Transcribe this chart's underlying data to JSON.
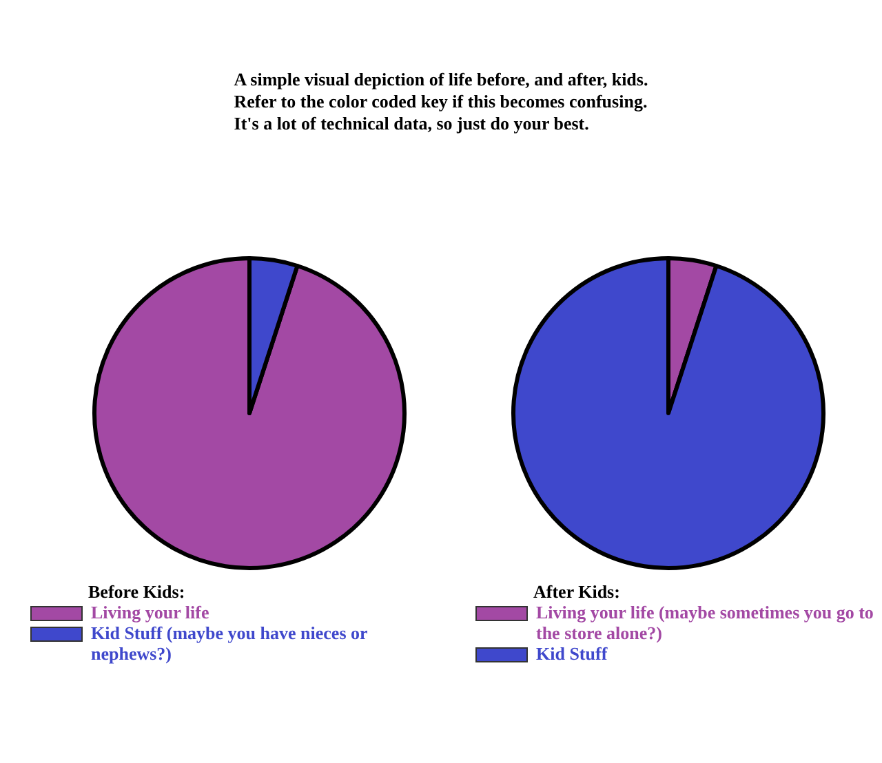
{
  "chart_data": [
    {
      "type": "pie",
      "title": "A simple visual depiction of life before, and after, kids.\nRefer to the color coded key if this becomes confusing.\nIt's a lot of technical data, so just do your best.",
      "legend_title": "Before Kids:",
      "legend": "bottom left",
      "categories": [
        "Living your life",
        "Kid Stuff (maybe you have nieces or nephews?)"
      ],
      "values": [
        95,
        5
      ],
      "colors": [
        "#a349a4",
        "#3f48cc"
      ]
    },
    {
      "type": "pie",
      "legend_title": "After Kids:",
      "legend": "bottom left",
      "categories": [
        "Living your life (maybe sometimes you go to the store alone?)",
        "Kid Stuff"
      ],
      "values": [
        5,
        95
      ],
      "colors": [
        "#a349a4",
        "#3f48cc"
      ]
    }
  ]
}
